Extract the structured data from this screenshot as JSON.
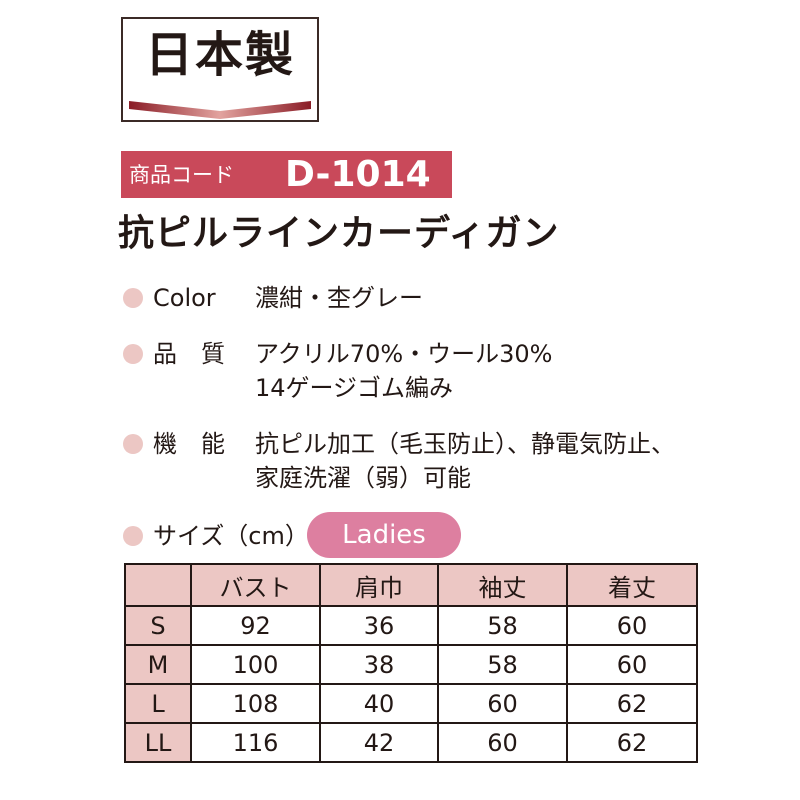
{
  "badge": {
    "text": "日本製"
  },
  "product": {
    "code_label": "商品コード",
    "code": "D-1014",
    "name": "抗ピルラインカーディガン"
  },
  "specs": {
    "color_label": "Color",
    "color_value": "濃紺・杢グレー",
    "quality_label": "品　質",
    "quality_value_1": "アクリル70%・ウール30%",
    "quality_value_2": "14ゲージゴム編み",
    "function_label": "機　能",
    "function_value_1": "抗ピル加工（毛玉防止）、静電気防止、",
    "function_value_2": "家庭洗濯（弱）可能"
  },
  "size": {
    "label": "サイズ（cm）",
    "category": "Ladies",
    "headers": [
      "",
      "バスト",
      "肩巾",
      "袖丈",
      "着丈"
    ],
    "rows": [
      [
        "S",
        "92",
        "36",
        "58",
        "60"
      ],
      [
        "M",
        "100",
        "38",
        "58",
        "60"
      ],
      [
        "L",
        "108",
        "40",
        "60",
        "62"
      ],
      [
        "LL",
        "116",
        "42",
        "60",
        "62"
      ]
    ]
  },
  "colors": {
    "accent": "#c9495a",
    "pill": "#dd7fa0",
    "header_bg": "#ecc7c4",
    "dot": "#ecc7c4"
  }
}
